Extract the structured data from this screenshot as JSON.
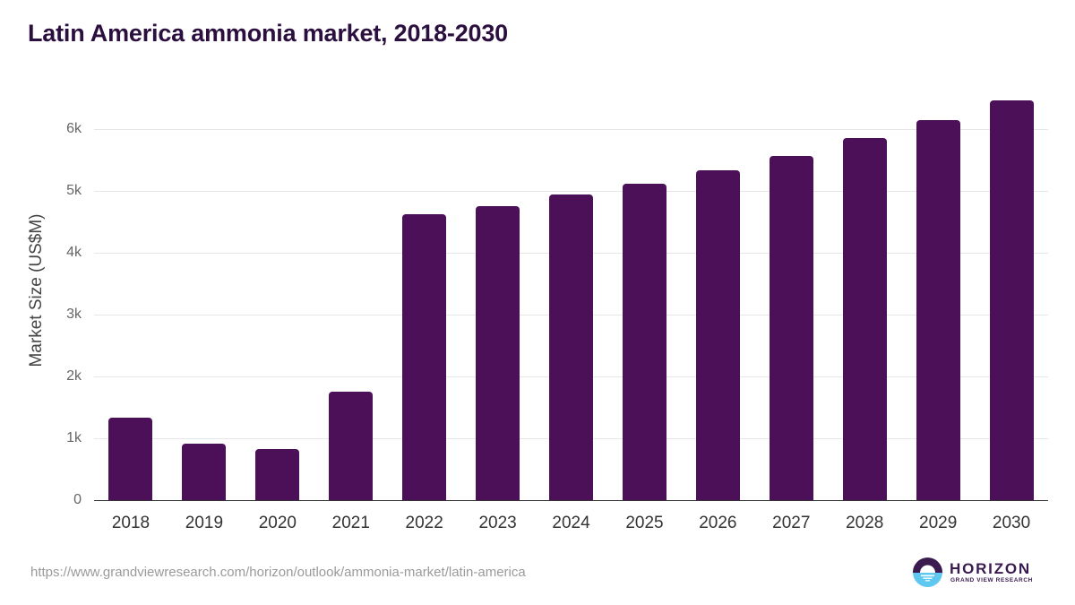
{
  "title": "Latin America ammonia market, 2018-2030",
  "source_url": "https://www.grandviewresearch.com/horizon/outlook/ammonia-market/latin-america",
  "logo": {
    "word": "HORIZON",
    "sub": "GRAND VIEW RESEARCH",
    "icon": "horizon-sun-logo-icon"
  },
  "colors": {
    "bar": "#4b1057",
    "title": "#2b0f3f",
    "logo_top": "#3a1a4f",
    "logo_bottom": "#5ec8f0"
  },
  "chart_data": {
    "type": "bar",
    "title": "Latin America ammonia market, 2018-2030",
    "xlabel": "",
    "ylabel": "Market Size (US$M)",
    "categories": [
      "2018",
      "2019",
      "2020",
      "2021",
      "2022",
      "2023",
      "2024",
      "2025",
      "2026",
      "2027",
      "2028",
      "2029",
      "2030"
    ],
    "values": [
      1330,
      920,
      820,
      1760,
      4620,
      4760,
      4940,
      5120,
      5340,
      5570,
      5850,
      6140,
      6470
    ],
    "ylim": [
      0,
      6630
    ],
    "yticks": [
      {
        "value": 0,
        "label": "0"
      },
      {
        "value": 1000,
        "label": "1k"
      },
      {
        "value": 2000,
        "label": "2k"
      },
      {
        "value": 3000,
        "label": "3k"
      },
      {
        "value": 4000,
        "label": "4k"
      },
      {
        "value": 5000,
        "label": "5k"
      },
      {
        "value": 6000,
        "label": "6k"
      }
    ],
    "grid": true,
    "legend": "none"
  }
}
